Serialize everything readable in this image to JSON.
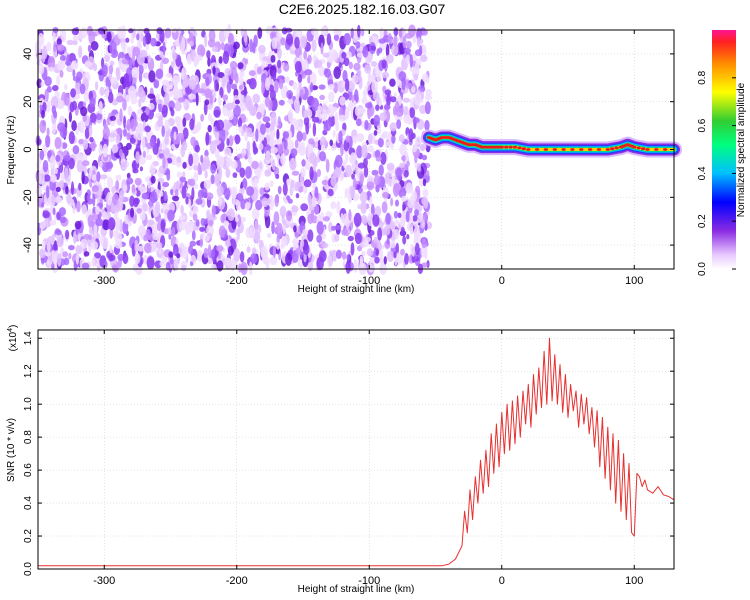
{
  "page": {
    "title": "C2E6.2025.182.16.03.G07"
  },
  "colors": {
    "snr_line": "#e83030",
    "spectrogram_noise": "#7a1cf0",
    "spectrogram_signal_core": "#e81c1c",
    "axis": "#000000",
    "grid": "#c8c8c8"
  },
  "chart_data": [
    {
      "type": "heatmap",
      "title": "C2E6.2025.182.16.03.G07",
      "xlabel": "Height of straight line (km)",
      "ylabel": "Frequency (Hz)",
      "xlim": [
        -350,
        130
      ],
      "ylim": [
        -50,
        50
      ],
      "x_ticks": [
        -300,
        -200,
        -100,
        0,
        100
      ],
      "x_tick_labels": [
        "-300",
        "-200",
        "-100",
        "0",
        "100"
      ],
      "y_ticks": [
        -40,
        -20,
        0,
        20,
        40
      ],
      "y_tick_labels": [
        "-40",
        "-20",
        "0",
        "20",
        "40"
      ],
      "grid": true,
      "noise_region": {
        "x_start": -350,
        "x_end": -55
      },
      "signal_track": {
        "x": [
          -55,
          -50,
          -45,
          -40,
          -35,
          -30,
          -25,
          -20,
          -15,
          -10,
          -5,
          0,
          10,
          20,
          40,
          60,
          80,
          90,
          95,
          100,
          110,
          130
        ],
        "y": [
          5,
          4,
          5,
          5,
          4,
          3,
          2,
          2,
          1,
          1,
          1,
          1,
          1,
          0,
          0,
          0,
          0,
          1,
          2,
          1,
          0,
          0
        ]
      },
      "colorbar": {
        "label": "Normalized spectral amplitude",
        "range": [
          0,
          1
        ],
        "ticks": [
          0.0,
          0.2,
          0.4,
          0.6,
          0.8
        ],
        "tick_labels": [
          "0.0",
          "0.2",
          "0.4",
          "0.6",
          "0.8"
        ]
      }
    },
    {
      "type": "line",
      "xlabel": "Height of straight line (km)",
      "ylabel": "SNR (10 * v/v)",
      "y_multiplier_label": "(x10",
      "y_multiplier_exp": "4",
      "y_multiplier_close": ")",
      "xlim": [
        -350,
        130
      ],
      "ylim": [
        0,
        1.45
      ],
      "x_ticks": [
        -300,
        -200,
        -100,
        0,
        100
      ],
      "x_tick_labels": [
        "-300",
        "-200",
        "-100",
        "0",
        "100"
      ],
      "y_ticks": [
        0.0,
        0.2,
        0.4,
        0.6,
        0.8,
        1.0,
        1.2,
        1.4
      ],
      "y_tick_labels": [
        "0.0",
        "0.2",
        "0.4",
        "0.6",
        "0.8",
        "1.0",
        "1.2",
        "1.4"
      ],
      "grid": true,
      "series": [
        {
          "x": [
            -350,
            -330,
            -300,
            -270,
            -240,
            -210,
            -180,
            -150,
            -120,
            -90,
            -60,
            -45,
            -40,
            -35,
            -30,
            -28,
            -26,
            -24,
            -22,
            -20,
            -18,
            -16,
            -14,
            -12,
            -10,
            -8,
            -6,
            -4,
            -2,
            0,
            2,
            4,
            6,
            8,
            10,
            12,
            14,
            16,
            18,
            20,
            22,
            24,
            26,
            28,
            30,
            32,
            34,
            36,
            38,
            40,
            42,
            44,
            46,
            48,
            50,
            52,
            54,
            56,
            58,
            60,
            62,
            64,
            66,
            68,
            70,
            72,
            74,
            76,
            78,
            80,
            82,
            84,
            86,
            88,
            90,
            92,
            94,
            96,
            98,
            100,
            102,
            104,
            106,
            108,
            110,
            114,
            118,
            122,
            126,
            130
          ],
          "y": [
            0.02,
            0.02,
            0.02,
            0.02,
            0.02,
            0.02,
            0.02,
            0.02,
            0.02,
            0.02,
            0.02,
            0.02,
            0.03,
            0.06,
            0.14,
            0.35,
            0.22,
            0.48,
            0.3,
            0.56,
            0.4,
            0.66,
            0.46,
            0.72,
            0.5,
            0.82,
            0.58,
            0.88,
            0.62,
            0.95,
            0.7,
            1.0,
            0.72,
            1.02,
            0.76,
            1.05,
            0.8,
            1.08,
            0.88,
            1.12,
            0.86,
            1.18,
            0.94,
            1.22,
            0.98,
            1.32,
            1.0,
            1.4,
            1.02,
            1.3,
            1.0,
            1.24,
            0.95,
            1.18,
            0.92,
            1.12,
            0.96,
            1.08,
            0.86,
            1.06,
            0.88,
            1.04,
            0.82,
            0.98,
            0.74,
            0.96,
            0.62,
            0.92,
            0.55,
            0.86,
            0.48,
            0.82,
            0.4,
            0.78,
            0.35,
            0.7,
            0.3,
            0.64,
            0.22,
            0.2,
            0.58,
            0.56,
            0.5,
            0.54,
            0.48,
            0.46,
            0.5,
            0.45,
            0.44,
            0.42
          ]
        }
      ]
    }
  ]
}
